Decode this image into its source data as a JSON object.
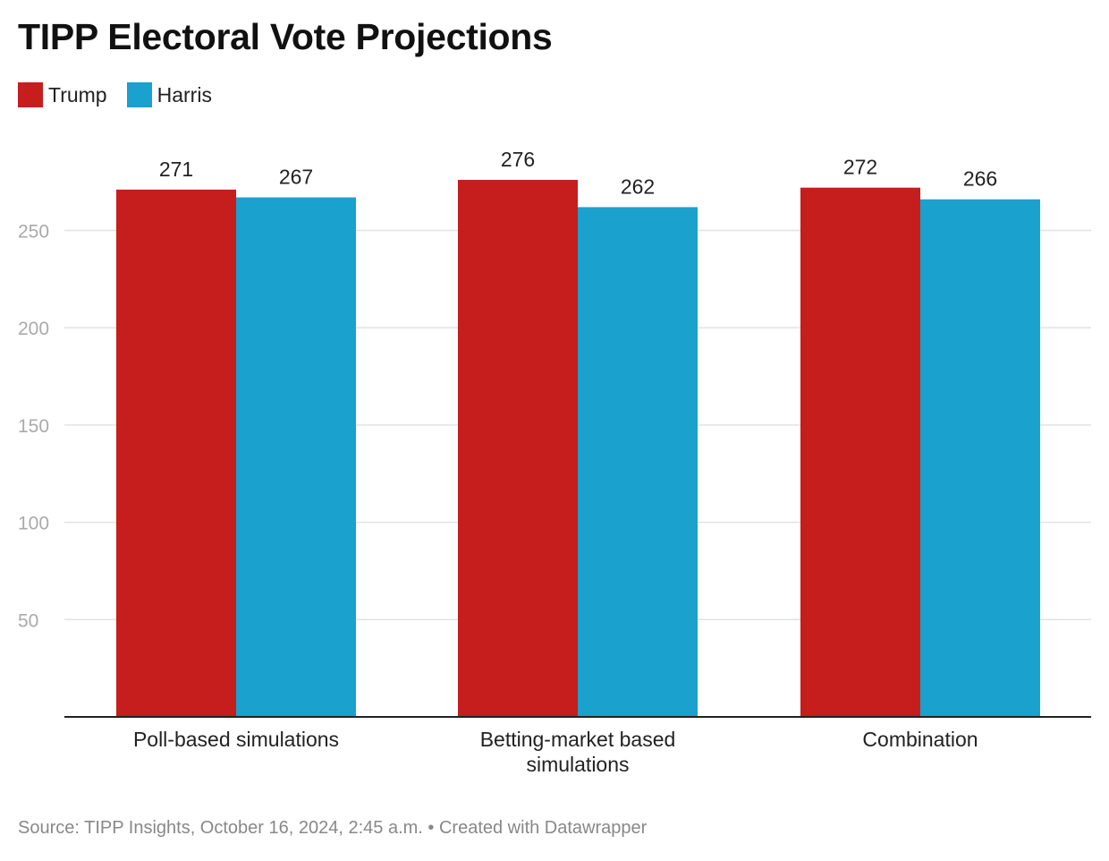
{
  "title": "TIPP Electoral Vote Projections",
  "legend": [
    {
      "label": "Trump",
      "color": "#c61d1d"
    },
    {
      "label": "Harris",
      "color": "#1aa1cd"
    }
  ],
  "source": "Source: TIPP Insights, October 16, 2024, 2:45 a.m. • Created with Datawrapper",
  "chart_data": {
    "type": "bar",
    "title": "TIPP Electoral Vote Projections",
    "categories": [
      [
        "Poll-based simulations"
      ],
      [
        "Betting-market based",
        "simulations"
      ],
      [
        "Combination"
      ]
    ],
    "series": [
      {
        "name": "Trump",
        "color": "#c61d1d",
        "values": [
          271,
          276,
          272
        ]
      },
      {
        "name": "Harris",
        "color": "#1aa1cd",
        "values": [
          267,
          262,
          266
        ]
      }
    ],
    "yticks": [
      50,
      100,
      150,
      200,
      250
    ],
    "ylim": [
      0,
      300
    ],
    "grid": true,
    "legend": "top-left",
    "data_labels": true
  }
}
